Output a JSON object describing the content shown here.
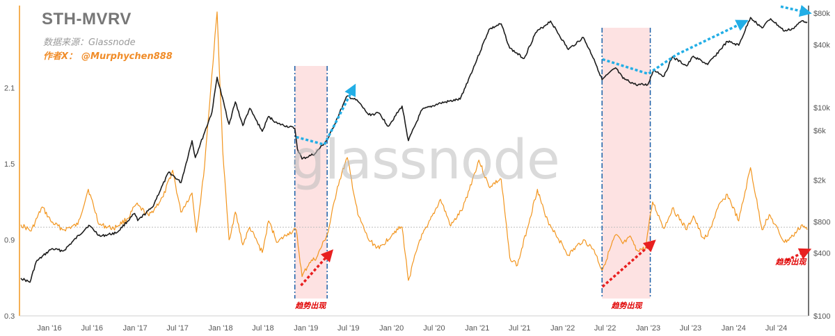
{
  "title": "STH-MVRV",
  "source_text": "数据来源：Glassnode",
  "author_label": "作者X：",
  "author_handle": "@Murphychen888",
  "watermark": "glassnode",
  "annotation_text": "趋势出现",
  "colors": {
    "mvrv": "#f2951e",
    "price": "#1c1c1c",
    "highlight_fill": "#fde2e2",
    "highlight_border": "#1a5fa8",
    "arrow_blue": "#22aee6",
    "arrow_red": "#e81f1f",
    "baseline": "#bdbdbd"
  },
  "chart_data": {
    "type": "line",
    "title": "STH-MVRV",
    "x_range": [
      "2015-09-01",
      "2024-11-10"
    ],
    "x_tick_labels": [
      "Jan '16",
      "Jul '16",
      "Jan '17",
      "Jul '17",
      "Jan '18",
      "Jul '18",
      "Jan '19",
      "Jul '19",
      "Jan '20",
      "Jul '20",
      "Jan '21",
      "Jul '21",
      "Jan '22",
      "Jul '22",
      "Jan '23",
      "Jul '23",
      "Jan '24",
      "Jul '24"
    ],
    "x_tick_dates": [
      "2016-01-01",
      "2016-07-01",
      "2017-01-01",
      "2017-07-01",
      "2018-01-01",
      "2018-07-01",
      "2019-01-01",
      "2019-07-01",
      "2020-01-01",
      "2020-07-01",
      "2021-01-01",
      "2021-07-01",
      "2022-01-01",
      "2022-07-01",
      "2023-01-01",
      "2023-07-01",
      "2024-01-01",
      "2024-07-01"
    ],
    "left_axis": {
      "ticks": [
        0.3,
        0.9,
        1.5,
        2.1
      ],
      "range": [
        0.3,
        2.75
      ]
    },
    "right_axis": {
      "scale": "log",
      "ticks": [
        100,
        400,
        800,
        2000,
        6000,
        10000,
        40000,
        80000
      ],
      "tick_labels": [
        "$100",
        "$400",
        "$800",
        "$2k",
        "$6k",
        "$10k",
        "$40k",
        "$80k"
      ],
      "range": [
        100,
        95000
      ]
    },
    "reference_line": 1.0,
    "series": [
      {
        "name": "",
        "axis": "left",
        "points": [
          [
            "2015-09-01",
            1.02
          ],
          [
            "2015-10-15",
            0.97
          ],
          [
            "2015-12-01",
            1.16
          ],
          [
            "2016-01-10",
            1.04
          ],
          [
            "2016-03-01",
            0.98
          ],
          [
            "2016-05-01",
            1.02
          ],
          [
            "2016-06-15",
            1.3
          ],
          [
            "2016-08-01",
            1.02
          ],
          [
            "2016-10-01",
            0.99
          ],
          [
            "2016-12-01",
            1.07
          ],
          [
            "2017-01-05",
            1.18
          ],
          [
            "2017-03-01",
            1.09
          ],
          [
            "2017-05-01",
            1.24
          ],
          [
            "2017-06-10",
            1.45
          ],
          [
            "2017-07-15",
            1.12
          ],
          [
            "2017-09-01",
            1.27
          ],
          [
            "2017-09-20",
            0.96
          ],
          [
            "2017-10-20",
            1.4
          ],
          [
            "2017-12-17",
            2.7
          ],
          [
            "2018-01-10",
            1.6
          ],
          [
            "2018-02-06",
            0.9
          ],
          [
            "2018-03-05",
            1.12
          ],
          [
            "2018-04-06",
            0.86
          ],
          [
            "2018-05-05",
            1.0
          ],
          [
            "2018-06-28",
            0.8
          ],
          [
            "2018-07-25",
            1.05
          ],
          [
            "2018-09-01",
            0.88
          ],
          [
            "2018-10-15",
            0.95
          ],
          [
            "2018-11-20",
            0.98
          ],
          [
            "2018-12-15",
            0.61
          ],
          [
            "2019-01-15",
            0.72
          ],
          [
            "2019-02-15",
            0.76
          ],
          [
            "2019-04-05",
            0.96
          ],
          [
            "2019-05-15",
            1.32
          ],
          [
            "2019-06-26",
            1.55
          ],
          [
            "2019-08-10",
            1.1
          ],
          [
            "2019-09-25",
            0.9
          ],
          [
            "2019-11-10",
            0.83
          ],
          [
            "2020-01-15",
            0.97
          ],
          [
            "2020-02-15",
            1.0
          ],
          [
            "2020-03-13",
            0.58
          ],
          [
            "2020-04-30",
            0.9
          ],
          [
            "2020-06-01",
            1.0
          ],
          [
            "2020-07-28",
            1.22
          ],
          [
            "2020-09-10",
            1.01
          ],
          [
            "2020-11-01",
            1.15
          ],
          [
            "2021-01-08",
            1.53
          ],
          [
            "2021-02-20",
            1.32
          ],
          [
            "2021-04-13",
            1.38
          ],
          [
            "2021-05-20",
            0.76
          ],
          [
            "2021-06-22",
            0.7
          ],
          [
            "2021-08-01",
            0.98
          ],
          [
            "2021-09-15",
            1.3
          ],
          [
            "2021-10-20",
            1.08
          ],
          [
            "2021-12-01",
            0.95
          ],
          [
            "2022-01-25",
            0.78
          ],
          [
            "2022-03-30",
            0.9
          ],
          [
            "2022-05-15",
            0.82
          ],
          [
            "2022-06-18",
            0.66
          ],
          [
            "2022-08-15",
            0.94
          ],
          [
            "2022-09-15",
            0.87
          ],
          [
            "2022-10-20",
            0.92
          ],
          [
            "2022-11-10",
            0.82
          ],
          [
            "2022-12-20",
            0.83
          ],
          [
            "2023-01-20",
            1.2
          ],
          [
            "2023-03-10",
            0.99
          ],
          [
            "2023-04-14",
            1.15
          ],
          [
            "2023-06-15",
            0.98
          ],
          [
            "2023-07-13",
            1.09
          ],
          [
            "2023-08-20",
            0.92
          ],
          [
            "2023-09-12",
            0.93
          ],
          [
            "2023-10-25",
            1.15
          ],
          [
            "2023-12-05",
            1.26
          ],
          [
            "2024-01-23",
            1.05
          ],
          [
            "2024-03-13",
            1.47
          ],
          [
            "2024-05-01",
            0.98
          ],
          [
            "2024-06-01",
            1.1
          ],
          [
            "2024-08-05",
            0.88
          ],
          [
            "2024-09-10",
            0.93
          ],
          [
            "2024-10-20",
            1.02
          ],
          [
            "2024-11-10",
            0.98
          ]
        ]
      },
      {
        "name": "",
        "axis": "right",
        "points": [
          [
            "2015-09-01",
            230
          ],
          [
            "2015-10-10",
            210
          ],
          [
            "2015-11-05",
            330
          ],
          [
            "2016-01-10",
            440
          ],
          [
            "2016-03-01",
            420
          ],
          [
            "2016-06-17",
            740
          ],
          [
            "2016-08-05",
            580
          ],
          [
            "2016-10-15",
            630
          ],
          [
            "2016-12-30",
            960
          ],
          [
            "2017-01-12",
            820
          ],
          [
            "2017-03-15",
            1100
          ],
          [
            "2017-05-25",
            2400
          ],
          [
            "2017-07-16",
            1900
          ],
          [
            "2017-09-01",
            4800
          ],
          [
            "2017-09-15",
            3300
          ],
          [
            "2017-11-25",
            9000
          ],
          [
            "2017-12-17",
            19500
          ],
          [
            "2018-02-06",
            6900
          ],
          [
            "2018-03-05",
            11300
          ],
          [
            "2018-04-06",
            6700
          ],
          [
            "2018-05-05",
            9800
          ],
          [
            "2018-06-28",
            5900
          ],
          [
            "2018-07-25",
            8200
          ],
          [
            "2018-09-01",
            7000
          ],
          [
            "2018-11-14",
            6300
          ],
          [
            "2018-11-25",
            4000
          ],
          [
            "2018-12-15",
            3200
          ],
          [
            "2019-02-08",
            3600
          ],
          [
            "2019-04-05",
            5000
          ],
          [
            "2019-05-15",
            8000
          ],
          [
            "2019-06-26",
            12900
          ],
          [
            "2019-08-10",
            11500
          ],
          [
            "2019-09-25",
            8500
          ],
          [
            "2019-11-10",
            8800
          ],
          [
            "2019-12-18",
            6600
          ],
          [
            "2020-02-15",
            10300
          ],
          [
            "2020-03-13",
            4800
          ],
          [
            "2020-05-10",
            9500
          ],
          [
            "2020-07-28",
            11000
          ],
          [
            "2020-10-20",
            12000
          ],
          [
            "2020-12-31",
            29000
          ],
          [
            "2021-02-20",
            56000
          ],
          [
            "2021-04-13",
            63500
          ],
          [
            "2021-05-20",
            37000
          ],
          [
            "2021-07-20",
            29500
          ],
          [
            "2021-09-07",
            52000
          ],
          [
            "2021-11-10",
            67500
          ],
          [
            "2022-01-25",
            36000
          ],
          [
            "2022-03-30",
            47000
          ],
          [
            "2022-05-15",
            29000
          ],
          [
            "2022-06-18",
            18500
          ],
          [
            "2022-08-15",
            24000
          ],
          [
            "2022-09-15",
            19000
          ],
          [
            "2022-11-10",
            16500
          ],
          [
            "2022-12-30",
            16500
          ],
          [
            "2023-01-25",
            23000
          ],
          [
            "2023-03-10",
            20000
          ],
          [
            "2023-04-14",
            30500
          ],
          [
            "2023-06-15",
            25000
          ],
          [
            "2023-07-13",
            31000
          ],
          [
            "2023-09-12",
            25800
          ],
          [
            "2023-12-05",
            43000
          ],
          [
            "2024-01-23",
            39500
          ],
          [
            "2024-03-13",
            73000
          ],
          [
            "2024-05-01",
            58000
          ],
          [
            "2024-06-07",
            71000
          ],
          [
            "2024-08-05",
            54000
          ],
          [
            "2024-09-10",
            57000
          ],
          [
            "2024-10-20",
            68000
          ],
          [
            "2024-11-10",
            66000
          ]
        ]
      }
    ],
    "highlight_ranges": [
      {
        "start": "2018-11-14",
        "end": "2019-04-01"
      },
      {
        "start": "2022-06-18",
        "end": "2023-01-10"
      }
    ],
    "annotations": [
      {
        "text": "趋势出现",
        "date": "2019-01-20"
      },
      {
        "text": "趋势出现",
        "date": "2022-10-01"
      },
      {
        "text": "趋势出现",
        "date": "2024-09-01"
      }
    ],
    "arrows": [
      {
        "color": "blue",
        "points": [
          [
            "2018-11-20",
            5200
          ],
          [
            "2019-03-20",
            4400
          ],
          [
            "2019-07-20",
            15000
          ]
        ]
      },
      {
        "color": "red",
        "points": [
          [
            "2018-12-10",
            0.54
          ],
          [
            "2019-04-10",
            0.79
          ]
        ]
      },
      {
        "color": "blue",
        "points": [
          [
            "2022-06-20",
            29000
          ],
          [
            "2023-01-01",
            21000
          ],
          [
            "2023-05-01",
            32000
          ],
          [
            "2024-02-10",
            65000
          ]
        ]
      },
      {
        "color": "red",
        "points": [
          [
            "2022-06-20",
            0.53
          ],
          [
            "2023-01-15",
            0.87
          ]
        ]
      },
      {
        "color": "blue",
        "points": [
          [
            "2024-07-20",
            93000
          ],
          [
            "2024-11-05",
            82000
          ]
        ]
      },
      {
        "color": "red",
        "points": [
          [
            "2024-08-15",
            0.74
          ],
          [
            "2024-11-05",
            0.81
          ]
        ]
      }
    ]
  }
}
